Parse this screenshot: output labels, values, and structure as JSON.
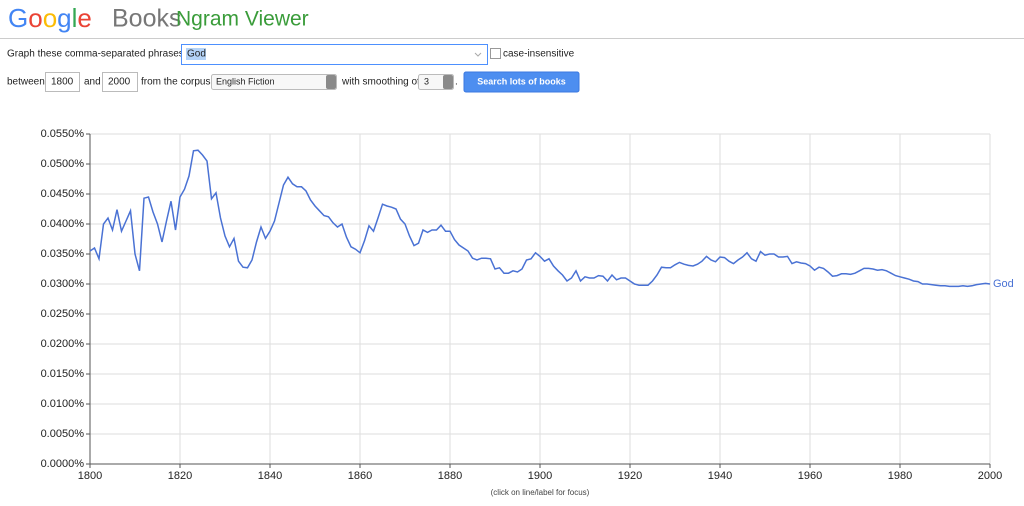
{
  "header": {
    "logo_letters": [
      "G",
      "o",
      "o",
      "g",
      "l",
      "e"
    ],
    "logo_colors": [
      "#4285f4",
      "#ea4335",
      "#fbbc05",
      "#4285f4",
      "#34a853",
      "#ea4335"
    ],
    "books": "Books",
    "title": "Ngram Viewer"
  },
  "form": {
    "phrases_label": "Graph these comma-separated phrases:",
    "phrases": "God",
    "case_insensitive": "case-insensitive",
    "between": "between",
    "year_start": "1800",
    "and": "and",
    "year_end": "2000",
    "corpus_label": "from the corpus",
    "corpus": "English Fiction",
    "smoothing_label": "with smoothing of",
    "smoothing": "3",
    "period": ".",
    "search": "Search lots of books"
  },
  "chart_data": {
    "type": "line",
    "grid": true,
    "xlim": [
      1800,
      2000
    ],
    "xticks": [
      1800,
      1820,
      1840,
      1860,
      1880,
      1900,
      1920,
      1940,
      1960,
      1980,
      2000
    ],
    "ylim": [
      0,
      0.055
    ],
    "yticks": [
      {
        "value": 0,
        "label": "0.0000%"
      },
      {
        "value": 0.005,
        "label": "0.0050%"
      },
      {
        "value": 0.01,
        "label": "0.0100%"
      },
      {
        "value": 0.015,
        "label": "0.0150%"
      },
      {
        "value": 0.02,
        "label": "0.0200%"
      },
      {
        "value": 0.025,
        "label": "0.0250%"
      },
      {
        "value": 0.03,
        "label": "0.0300%"
      },
      {
        "value": 0.035,
        "label": "0.0350%"
      },
      {
        "value": 0.04,
        "label": "0.0400%"
      },
      {
        "value": 0.045,
        "label": "0.0450%"
      },
      {
        "value": 0.05,
        "label": "0.0500%"
      },
      {
        "value": 0.055,
        "label": "0.0550%"
      }
    ],
    "x": [
      1800,
      1801,
      1802,
      1803,
      1804,
      1805,
      1806,
      1807,
      1808,
      1809,
      1810,
      1811,
      1812,
      1813,
      1814,
      1815,
      1816,
      1817,
      1818,
      1819,
      1820,
      1821,
      1822,
      1823,
      1824,
      1825,
      1826,
      1827,
      1828,
      1829,
      1830,
      1831,
      1832,
      1833,
      1834,
      1835,
      1836,
      1837,
      1838,
      1839,
      1840,
      1841,
      1842,
      1843,
      1844,
      1845,
      1846,
      1847,
      1848,
      1849,
      1850,
      1851,
      1852,
      1853,
      1854,
      1855,
      1856,
      1857,
      1858,
      1859,
      1860,
      1861,
      1862,
      1863,
      1864,
      1865,
      1866,
      1867,
      1868,
      1869,
      1870,
      1871,
      1872,
      1873,
      1874,
      1875,
      1876,
      1877,
      1878,
      1879,
      1880,
      1881,
      1882,
      1883,
      1884,
      1885,
      1886,
      1887,
      1888,
      1889,
      1890,
      1891,
      1892,
      1893,
      1894,
      1895,
      1896,
      1897,
      1898,
      1899,
      1900,
      1901,
      1902,
      1903,
      1904,
      1905,
      1906,
      1907,
      1908,
      1909,
      1910,
      1911,
      1912,
      1913,
      1914,
      1915,
      1916,
      1917,
      1918,
      1919,
      1920,
      1921,
      1922,
      1923,
      1924,
      1925,
      1926,
      1927,
      1928,
      1929,
      1930,
      1931,
      1932,
      1933,
      1934,
      1935,
      1936,
      1937,
      1938,
      1939,
      1940,
      1941,
      1942,
      1943,
      1944,
      1945,
      1946,
      1947,
      1948,
      1949,
      1950,
      1951,
      1952,
      1953,
      1954,
      1955,
      1956,
      1957,
      1958,
      1959,
      1960,
      1961,
      1962,
      1963,
      1964,
      1965,
      1966,
      1967,
      1968,
      1969,
      1970,
      1971,
      1972,
      1973,
      1974,
      1975,
      1976,
      1977,
      1978,
      1979,
      1980,
      1981,
      1982,
      1983,
      1984,
      1985,
      1986,
      1987,
      1988,
      1989,
      1990,
      1991,
      1992,
      1993,
      1994,
      1995,
      1996,
      1997,
      1998,
      1999,
      2000
    ],
    "series": [
      {
        "name": "God",
        "color": "#4a72d4",
        "values": [
          0.0355,
          0.036,
          0.0342,
          0.04,
          0.041,
          0.039,
          0.0424,
          0.0388,
          0.0405,
          0.0422,
          0.035,
          0.0322,
          0.0443,
          0.0445,
          0.042,
          0.04,
          0.037,
          0.0405,
          0.0438,
          0.039,
          0.0445,
          0.0458,
          0.048,
          0.0522,
          0.0523,
          0.0515,
          0.0505,
          0.0442,
          0.0452,
          0.041,
          0.038,
          0.0362,
          0.0376,
          0.0338,
          0.0328,
          0.0327,
          0.034,
          0.037,
          0.0395,
          0.0376,
          0.0388,
          0.0405,
          0.0435,
          0.0465,
          0.0478,
          0.0467,
          0.0462,
          0.0462,
          0.0455,
          0.044,
          0.043,
          0.0422,
          0.0414,
          0.0412,
          0.0402,
          0.0395,
          0.04,
          0.0378,
          0.0362,
          0.0358,
          0.0352,
          0.0372,
          0.0397,
          0.0388,
          0.041,
          0.0433,
          0.043,
          0.0428,
          0.0425,
          0.0408,
          0.04,
          0.038,
          0.0364,
          0.0368,
          0.039,
          0.0386,
          0.039,
          0.039,
          0.0398,
          0.0388,
          0.0388,
          0.0374,
          0.0365,
          0.036,
          0.0355,
          0.0343,
          0.034,
          0.0343,
          0.0343,
          0.0342,
          0.0325,
          0.0327,
          0.0318,
          0.0318,
          0.0322,
          0.032,
          0.0325,
          0.034,
          0.0342,
          0.0352,
          0.0346,
          0.0338,
          0.0342,
          0.033,
          0.0322,
          0.0315,
          0.0305,
          0.031,
          0.0322,
          0.0305,
          0.0312,
          0.031,
          0.031,
          0.0314,
          0.0313,
          0.0305,
          0.0315,
          0.0307,
          0.031,
          0.031,
          0.0305,
          0.03,
          0.0298,
          0.0298,
          0.0298,
          0.0305,
          0.0315,
          0.0328,
          0.0327,
          0.0327,
          0.0332,
          0.0336,
          0.0333,
          0.0331,
          0.033,
          0.0333,
          0.0338,
          0.0346,
          0.034,
          0.0337,
          0.0345,
          0.0344,
          0.0338,
          0.0334,
          0.034,
          0.0345,
          0.0352,
          0.0342,
          0.0338,
          0.0354,
          0.0348,
          0.035,
          0.035,
          0.0345,
          0.0345,
          0.0346,
          0.0334,
          0.0337,
          0.0335,
          0.0334,
          0.033,
          0.0323,
          0.0328,
          0.0326,
          0.032,
          0.0313,
          0.0314,
          0.0317,
          0.0317,
          0.0316,
          0.0318,
          0.0322,
          0.0326,
          0.0326,
          0.0325,
          0.0323,
          0.0324,
          0.0322,
          0.0318,
          0.0314,
          0.0312,
          0.031,
          0.0308,
          0.0305,
          0.0304,
          0.03,
          0.03,
          0.0299,
          0.0298,
          0.0297,
          0.0297,
          0.0296,
          0.0296,
          0.0296,
          0.0297,
          0.0296,
          0.0297,
          0.0299,
          0.03,
          0.0301,
          0.03
        ]
      }
    ]
  },
  "footer": "(click on line/label for focus)"
}
